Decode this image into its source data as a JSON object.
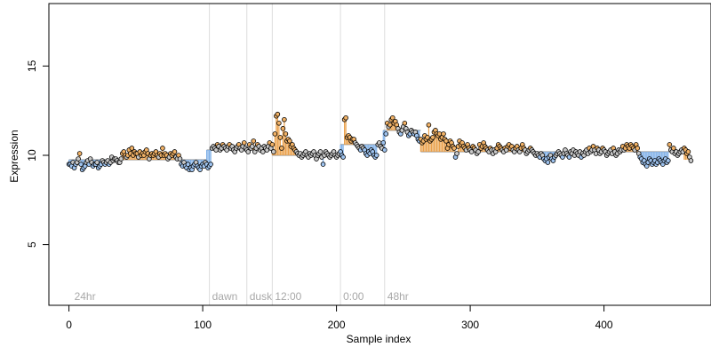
{
  "chart_data": {
    "type": "scatter",
    "title": "",
    "xlabel": "Sample index",
    "ylabel": "Expression",
    "xlim": [
      -15,
      480
    ],
    "ylim": [
      1.6,
      18.5
    ],
    "x_ticks": [
      0,
      100,
      200,
      300,
      400
    ],
    "y_ticks": [
      5,
      10,
      15
    ],
    "grid": false,
    "legend": "none",
    "baseline": 9.75,
    "colors": {
      "point_fill_default": "#c8c8c8",
      "point_fill_low": "#9ec3ef",
      "point_fill_high": "#f2b266",
      "segment_low": "#7fb0e8",
      "segment_high": "#eaa14c",
      "phase_line": "#dcdcdc",
      "phase_label": "#a8a8a8"
    },
    "phase_markers": [
      {
        "x": 2,
        "label": "24hr",
        "line": false
      },
      {
        "x": 105,
        "label": "dawn",
        "line": true
      },
      {
        "x": 133,
        "label": "dusk",
        "line": true
      },
      {
        "x": 152,
        "label": "12:00",
        "line": true
      },
      {
        "x": 203,
        "label": "0:00",
        "line": true
      },
      {
        "x": 236,
        "label": "48hr",
        "line": true
      }
    ],
    "segments": [
      {
        "x0": 0,
        "x1": 103,
        "level": 9.75
      },
      {
        "x0": 103,
        "x1": 152,
        "level": 10.3
      },
      {
        "x0": 152,
        "x1": 203,
        "level": 10.0
      },
      {
        "x0": 203,
        "x1": 235,
        "level": 10.6
      },
      {
        "x0": 235,
        "x1": 263,
        "level": 11.4
      },
      {
        "x0": 263,
        "x1": 460,
        "level": 10.2
      }
    ],
    "series": [
      {
        "values": [
          9.5,
          9.5,
          9.4,
          9.6,
          9.3,
          9.5,
          9.6,
          9.8,
          10.1,
          9.5,
          9.2,
          9.3,
          9.4,
          9.6,
          9.7,
          9.5,
          9.8,
          9.6,
          9.4,
          9.5,
          9.5,
          9.6,
          9.3,
          9.4,
          9.5,
          9.7,
          9.6,
          9.5,
          9.6,
          9.7,
          9.5,
          9.6,
          9.9,
          9.7,
          9.8,
          9.8,
          9.7,
          9.6,
          9.6,
          9.8,
          10.1,
          10.2,
          10.0,
          9.9,
          10.0,
          10.3,
          10.1,
          10.4,
          10.0,
          10.2,
          10.1,
          10.1,
          9.9,
          10.2,
          10.0,
          10.1,
          10.0,
          10.2,
          10.3,
          10.1,
          9.8,
          10.0,
          10.1,
          10.0,
          10.1,
          10.2,
          10.0,
          9.9,
          10.1,
          10.0,
          10.4,
          10.0,
          10.1,
          10.0,
          9.8,
          9.9,
          10.1,
          10.0,
          10.1,
          10.2,
          9.9,
          9.8,
          10.0,
          9.8,
          9.5,
          9.4,
          9.6,
          9.4,
          9.3,
          9.5,
          9.2,
          9.3,
          9.2,
          9.4,
          9.5,
          9.6,
          9.4,
          9.3,
          9.2,
          9.4,
          9.5,
          9.4,
          9.6,
          9.5,
          9.3,
          9.4,
          9.5,
          10.4,
          10.5,
          10.4,
          10.3,
          10.6,
          10.5,
          10.3,
          10.4,
          10.6,
          10.5,
          10.4,
          10.3,
          10.5,
          10.6,
          10.4,
          10.5,
          10.3,
          10.2,
          10.4,
          10.5,
          10.6,
          10.4,
          10.3,
          10.5,
          10.7,
          10.4,
          10.3,
          10.2,
          10.6,
          10.4,
          10.5,
          10.8,
          10.2,
          10.4,
          10.6,
          10.5,
          10.3,
          10.4,
          10.2,
          10.5,
          10.4,
          10.3,
          10.5,
          10.7,
          10.4,
          10.6,
          10.2,
          11.2,
          12.2,
          12.3,
          11.8,
          11.0,
          10.4,
          11.5,
          12.0,
          11.2,
          10.8,
          10.9,
          10.8,
          10.5,
          10.6,
          10.4,
          10.3,
          10.2,
          10.1,
          10.0,
          10.1,
          9.9,
          10.0,
          10.1,
          10.2,
          10.0,
          9.9,
          10.1,
          10.0,
          10.1,
          10.2,
          10.0,
          9.8,
          10.0,
          10.1,
          10.2,
          9.9,
          9.5,
          10.0,
          10.2,
          10.1,
          10.0,
          9.9,
          10.0,
          10.1,
          10.2,
          10.0,
          9.9,
          10.0,
          10.1,
          10.2,
          10.0,
          9.9,
          12.0,
          12.1,
          11.0,
          11.1,
          11.0,
          10.8,
          10.9,
          10.9,
          10.7,
          10.6,
          10.5,
          10.4,
          10.3,
          10.5,
          10.4,
          10.3,
          10.1,
          10.0,
          10.2,
          10.1,
          10.3,
          10.2,
          10.0,
          9.9,
          10.0,
          10.6,
          10.7,
          10.5,
          10.4,
          10.7,
          10.3,
          11.2,
          11.8,
          11.6,
          11.7,
          12.0,
          12.1,
          11.8,
          11.9,
          11.7,
          11.5,
          11.3,
          11.2,
          11.4,
          11.6,
          11.8,
          11.5,
          11.3,
          11.1,
          11.2,
          11.4,
          11.3,
          11.2,
          11.3,
          11.1,
          10.9,
          10.8,
          10.9,
          10.7,
          10.8,
          11.1,
          10.9,
          11.0,
          11.7,
          10.8,
          10.9,
          11.0,
          11.3,
          11.4,
          11.2,
          11.1,
          11.2,
          10.9,
          11.0,
          11.2,
          10.9,
          10.8,
          10.4,
          10.6,
          10.8,
          10.7,
          10.5,
          10.4,
          9.9,
          10.1,
          10.5,
          10.8,
          10.6,
          10.7,
          10.5,
          10.4,
          10.3,
          10.6,
          10.4,
          10.3,
          10.2,
          10.5,
          10.4,
          10.3,
          10.1,
          10.2,
          10.6,
          10.4,
          10.5,
          10.7,
          10.5,
          10.4,
          10.3,
          10.2,
          10.4,
          10.3,
          10.1,
          10.3,
          10.2,
          10.4,
          10.6,
          10.5,
          10.4,
          10.3,
          10.2,
          10.4,
          10.3,
          10.5,
          10.6,
          10.4,
          10.5,
          10.3,
          10.2,
          10.4,
          10.5,
          10.3,
          10.2,
          10.4,
          10.6,
          10.4,
          10.3,
          10.1,
          10.2,
          10.3,
          10.4,
          10.3,
          10.2,
          10.1,
          10.0,
          10.1,
          10.0,
          9.9,
          10.1,
          10.0,
          9.8,
          9.7,
          9.8,
          9.6,
          9.9,
          10.0,
          9.8,
          9.7,
          9.9,
          10.0,
          10.1,
          10.2,
          10.1,
          10.0,
          9.9,
          10.1,
          10.3,
          10.1,
          10.0,
          9.9,
          10.2,
          10.1,
          10.3,
          10.0,
          10.2,
          10.1,
          10.0,
          10.2,
          9.9,
          10.1,
          10.0,
          10.2,
          10.3,
          10.1,
          10.4,
          10.2,
          10.3,
          10.5,
          10.3,
          10.1,
          10.4,
          10.3,
          10.1,
          10.2,
          10.4,
          10.3,
          10.2,
          10.0,
          10.1,
          10.2,
          10.3,
          10.1,
          10.4,
          10.2,
          10.0,
          10.1,
          10.3,
          10.2,
          10.3,
          10.5,
          10.3,
          10.4,
          10.6,
          10.5,
          10.4,
          10.6,
          10.5,
          10.4,
          10.3,
          10.6,
          10.4,
          10.1,
          9.9,
          9.8,
          9.6,
          9.7,
          9.5,
          9.4,
          9.6,
          9.8,
          9.7,
          9.5,
          9.6,
          9.7,
          9.5,
          9.6,
          9.8,
          9.7,
          9.6,
          9.5,
          9.7,
          9.8,
          9.6,
          9.7,
          10.6,
          10.3,
          10.2,
          10.4,
          10.1,
          10.2,
          10.0,
          10.1,
          10.2,
          10.3,
          10.2,
          10.4,
          10.3,
          10.1,
          10.2,
          9.9,
          9.7
        ]
      }
    ]
  }
}
